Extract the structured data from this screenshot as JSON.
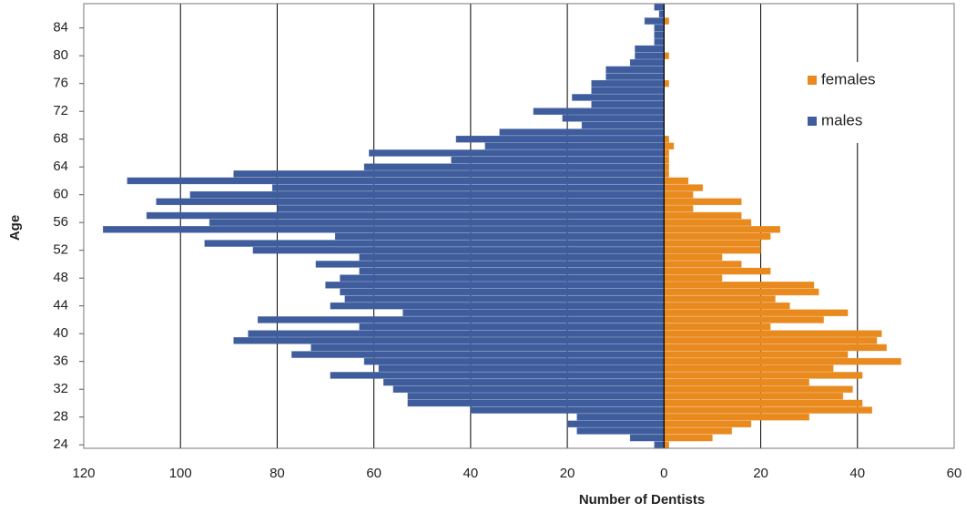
{
  "chart_data": {
    "type": "bar",
    "orientation": "horizontal",
    "x_label": "Number of Dentists",
    "y_label": "Age",
    "y": [
      24,
      25,
      26,
      27,
      28,
      29,
      30,
      31,
      32,
      33,
      34,
      35,
      36,
      37,
      38,
      39,
      40,
      41,
      42,
      43,
      44,
      45,
      46,
      47,
      48,
      49,
      50,
      51,
      52,
      53,
      54,
      55,
      56,
      57,
      58,
      59,
      60,
      61,
      62,
      63,
      64,
      65,
      66,
      67,
      68,
      69,
      70,
      71,
      72,
      73,
      74,
      75,
      76,
      77,
      78,
      79,
      80,
      81,
      82,
      83,
      84,
      85,
      86,
      87
    ],
    "series": [
      {
        "name": "females",
        "color": "#e98a1f",
        "values": [
          1,
          10,
          14,
          18,
          30,
          43,
          41,
          37,
          39,
          30,
          41,
          35,
          49,
          38,
          46,
          44,
          45,
          22,
          33,
          38,
          26,
          23,
          32,
          31,
          12,
          22,
          16,
          12,
          20,
          20,
          22,
          24,
          18,
          16,
          6,
          16,
          6,
          8,
          5,
          1,
          1,
          1,
          1,
          2,
          1,
          0,
          0,
          0,
          0,
          0,
          0,
          0,
          1,
          0,
          0,
          0,
          1,
          0,
          0,
          0,
          0,
          1,
          0,
          0
        ]
      },
      {
        "name": "males",
        "color": "#3f5d9c",
        "values": [
          -2,
          -7,
          -18,
          -20,
          -18,
          -40,
          -53,
          -53,
          -56,
          -58,
          -69,
          -59,
          -62,
          -77,
          -73,
          -89,
          -86,
          -63,
          -84,
          -54,
          -69,
          -66,
          -67,
          -70,
          -67,
          -63,
          -72,
          -63,
          -85,
          -95,
          -68,
          -116,
          -94,
          -107,
          -80,
          -105,
          -98,
          -81,
          -111,
          -89,
          -62,
          -44,
          -61,
          -37,
          -43,
          -34,
          -17,
          -21,
          -27,
          -15,
          -19,
          -15,
          -15,
          -12,
          -12,
          -7,
          -6,
          -6,
          -2,
          -2,
          -2,
          -4,
          -1,
          -2
        ]
      }
    ],
    "xlim": [
      -120,
      60
    ],
    "xticks": [
      {
        "value": -120,
        "label": "120"
      },
      {
        "value": -100,
        "label": "100"
      },
      {
        "value": -80,
        "label": "80"
      },
      {
        "value": -60,
        "label": "60"
      },
      {
        "value": -40,
        "label": "40"
      },
      {
        "value": -20,
        "label": "20"
      },
      0,
      20,
      40,
      60
    ],
    "ylim": [
      23.5,
      87.5
    ],
    "yticks": [
      24,
      28,
      32,
      36,
      40,
      44,
      48,
      52,
      56,
      60,
      64,
      68,
      72,
      76,
      80,
      84
    ],
    "grid": true,
    "legend": "upper right"
  }
}
